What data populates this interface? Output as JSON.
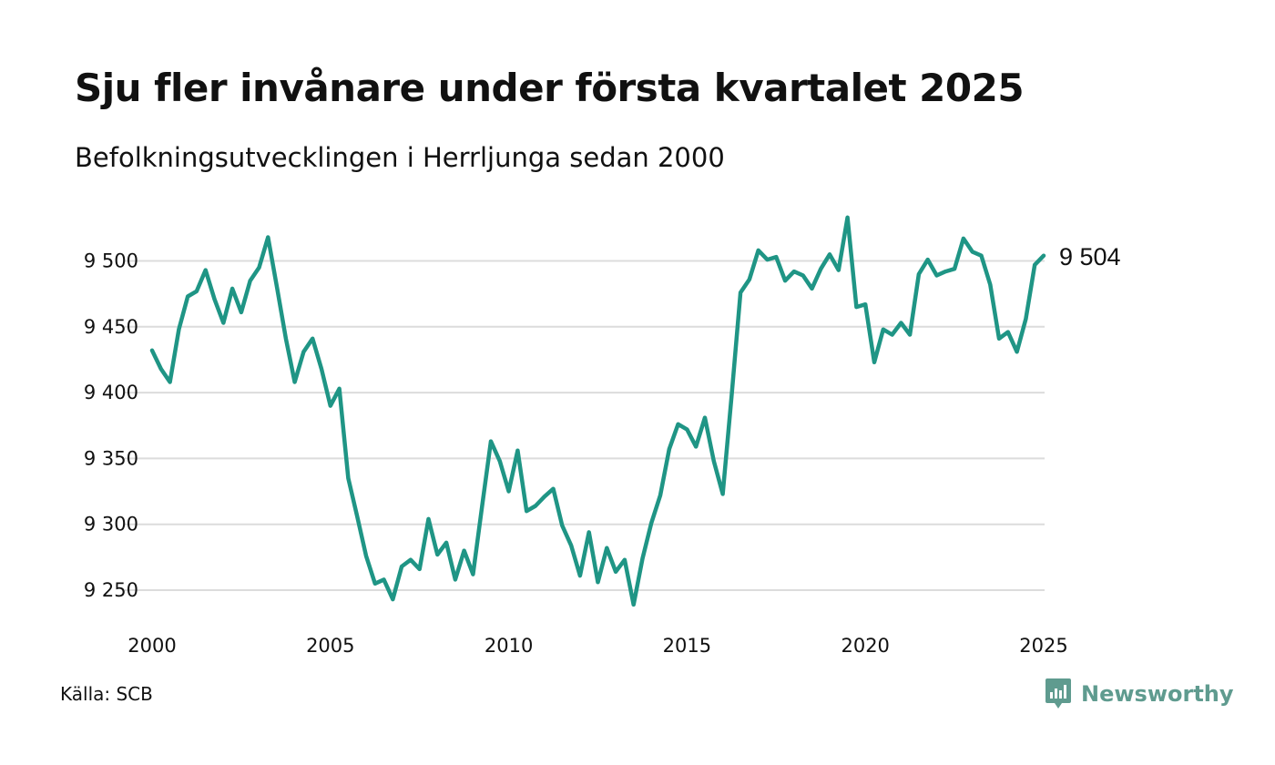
{
  "header": {
    "title": "Sju fler invånare under första kvartalet 2025",
    "subtitle": "Befolkningsutvecklingen i Herrljunga sedan 2000"
  },
  "footer": {
    "source": "Källa: SCB",
    "brand": "Newsworthy"
  },
  "colors": {
    "line": "#1f9585",
    "grid": "#dcdcdc",
    "brand": "#5f9b8f"
  },
  "chart_data": {
    "type": "line",
    "title": "Sju fler invånare under första kvartalet 2025",
    "subtitle": "Befolkningsutvecklingen i Herrljunga sedan 2000",
    "xlabel": "",
    "ylabel": "",
    "x_tick_labels": [
      "2000",
      "2005",
      "2010",
      "2015",
      "2020",
      "2025"
    ],
    "y_tick_labels": [
      "9 250",
      "9 300",
      "9 350",
      "9 400",
      "9 450",
      "9 500"
    ],
    "y_ticks": [
      9250,
      9300,
      9350,
      9400,
      9450,
      9500
    ],
    "x_ticks": [
      2000,
      2005,
      2010,
      2015,
      2020,
      2025
    ],
    "xlim": [
      2000,
      2025
    ],
    "ylim": [
      9230,
      9540
    ],
    "grid": "horizontal",
    "legend": "none",
    "end_label": "9 504",
    "series": [
      {
        "values": [
          [
            2000.0,
            9432
          ],
          [
            2000.25,
            9418
          ],
          [
            2000.5,
            9408
          ],
          [
            2000.75,
            9448
          ],
          [
            2001.0,
            9473
          ],
          [
            2001.25,
            9477
          ],
          [
            2001.5,
            9493
          ],
          [
            2001.75,
            9471
          ],
          [
            2002.0,
            9453
          ],
          [
            2002.25,
            9479
          ],
          [
            2002.5,
            9461
          ],
          [
            2002.75,
            9485
          ],
          [
            2003.0,
            9495
          ],
          [
            2003.25,
            9518
          ],
          [
            2003.5,
            9480
          ],
          [
            2003.75,
            9441
          ],
          [
            2004.0,
            9408
          ],
          [
            2004.25,
            9431
          ],
          [
            2004.5,
            9441
          ],
          [
            2004.75,
            9418
          ],
          [
            2005.0,
            9390
          ],
          [
            2005.25,
            9403
          ],
          [
            2005.5,
            9335
          ],
          [
            2005.75,
            9306
          ],
          [
            2006.0,
            9276
          ],
          [
            2006.25,
            9255
          ],
          [
            2006.5,
            9258
          ],
          [
            2006.75,
            9243
          ],
          [
            2007.0,
            9268
          ],
          [
            2007.25,
            9273
          ],
          [
            2007.5,
            9266
          ],
          [
            2007.75,
            9304
          ],
          [
            2008.0,
            9277
          ],
          [
            2008.25,
            9286
          ],
          [
            2008.5,
            9258
          ],
          [
            2008.75,
            9280
          ],
          [
            2009.0,
            9262
          ],
          [
            2009.25,
            9313
          ],
          [
            2009.5,
            9363
          ],
          [
            2009.75,
            9348
          ],
          [
            2010.0,
            9325
          ],
          [
            2010.25,
            9356
          ],
          [
            2010.5,
            9310
          ],
          [
            2010.75,
            9314
          ],
          [
            2011.0,
            9321
          ],
          [
            2011.25,
            9327
          ],
          [
            2011.5,
            9299
          ],
          [
            2011.75,
            9284
          ],
          [
            2012.0,
            9261
          ],
          [
            2012.25,
            9294
          ],
          [
            2012.5,
            9256
          ],
          [
            2012.75,
            9282
          ],
          [
            2013.0,
            9264
          ],
          [
            2013.25,
            9273
          ],
          [
            2013.5,
            9239
          ],
          [
            2013.75,
            9274
          ],
          [
            2014.0,
            9301
          ],
          [
            2014.25,
            9322
          ],
          [
            2014.5,
            9357
          ],
          [
            2014.75,
            9376
          ],
          [
            2015.0,
            9372
          ],
          [
            2015.25,
            9359
          ],
          [
            2015.5,
            9381
          ],
          [
            2015.75,
            9348
          ],
          [
            2016.0,
            9323
          ],
          [
            2016.25,
            9398
          ],
          [
            2016.5,
            9476
          ],
          [
            2016.75,
            9486
          ],
          [
            2017.0,
            9508
          ],
          [
            2017.25,
            9501
          ],
          [
            2017.5,
            9503
          ],
          [
            2017.75,
            9485
          ],
          [
            2018.0,
            9492
          ],
          [
            2018.25,
            9489
          ],
          [
            2018.5,
            9479
          ],
          [
            2018.75,
            9494
          ],
          [
            2019.0,
            9505
          ],
          [
            2019.25,
            9493
          ],
          [
            2019.5,
            9533
          ],
          [
            2019.75,
            9465
          ],
          [
            2020.0,
            9467
          ],
          [
            2020.25,
            9423
          ],
          [
            2020.5,
            9448
          ],
          [
            2020.75,
            9444
          ],
          [
            2021.0,
            9453
          ],
          [
            2021.25,
            9444
          ],
          [
            2021.5,
            9490
          ],
          [
            2021.75,
            9501
          ],
          [
            2022.0,
            9489
          ],
          [
            2022.25,
            9492
          ],
          [
            2022.5,
            9494
          ],
          [
            2022.75,
            9517
          ],
          [
            2023.0,
            9507
          ],
          [
            2023.25,
            9504
          ],
          [
            2023.5,
            9482
          ],
          [
            2023.75,
            9441
          ],
          [
            2024.0,
            9446
          ],
          [
            2024.25,
            9431
          ],
          [
            2024.5,
            9456
          ],
          [
            2024.75,
            9497
          ],
          [
            2025.0,
            9504
          ]
        ]
      }
    ]
  }
}
